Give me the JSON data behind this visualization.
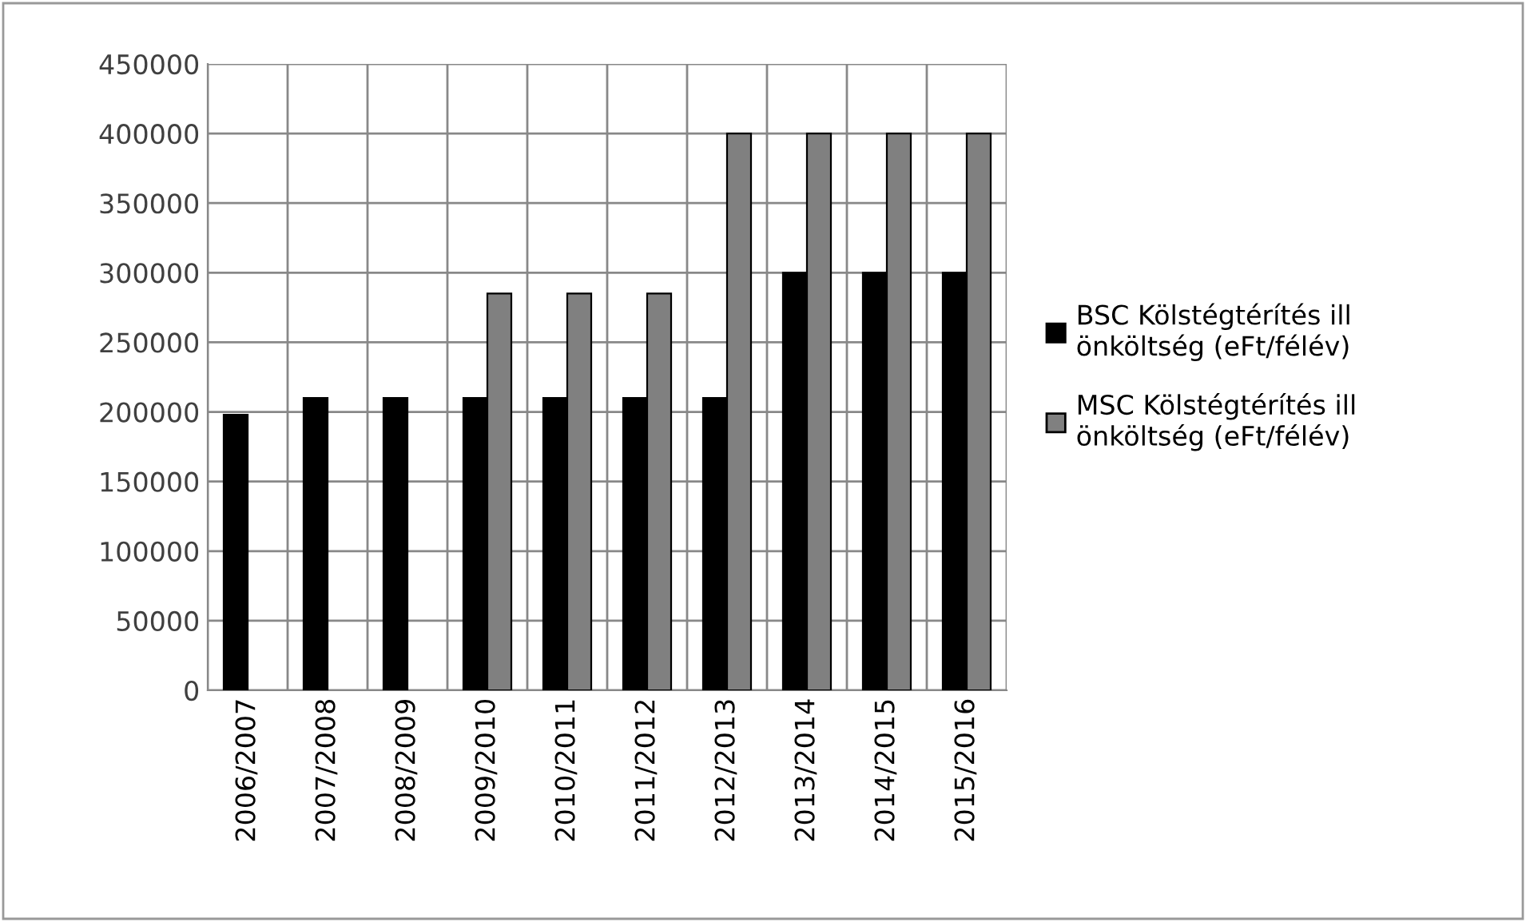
{
  "chart_data": {
    "type": "bar",
    "categories": [
      "2006/2007",
      "2007/2008",
      "2008/2009",
      "2009/2010",
      "2010/2011",
      "2011/2012",
      "2012/2013",
      "2013/2014",
      "2014/2015",
      "2015/2016"
    ],
    "series": [
      {
        "name": "BSC Kölstégtérítés ill önköltség (eFt/félév)",
        "color": "#000000",
        "values": [
          198000,
          210000,
          210000,
          210000,
          210000,
          210000,
          210000,
          300000,
          300000,
          300000
        ]
      },
      {
        "name": "MSC Kölstégtérítés ill önköltség (eFt/félév)",
        "color": "#808080",
        "values": [
          null,
          null,
          null,
          285000,
          285000,
          285000,
          400000,
          400000,
          400000,
          400000
        ]
      }
    ],
    "ylim": [
      0,
      450000
    ],
    "yticks": [
      0,
      50000,
      100000,
      150000,
      200000,
      250000,
      300000,
      350000,
      400000,
      450000
    ],
    "grid": true,
    "legend": "right"
  }
}
